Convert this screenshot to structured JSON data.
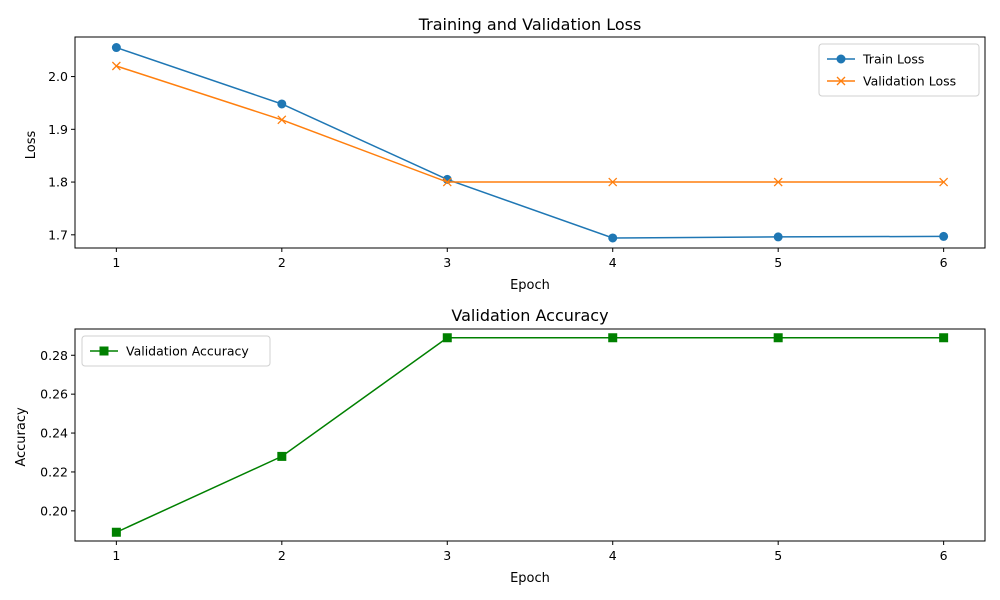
{
  "chart_data": [
    {
      "type": "line",
      "title": "Training and Validation Loss",
      "xlabel": "Epoch",
      "ylabel": "Loss",
      "x": [
        1,
        2,
        3,
        4,
        5,
        6
      ],
      "xlim": [
        0.75,
        6.25
      ],
      "ylim": [
        1.675,
        2.075
      ],
      "xticks": [
        1,
        2,
        3,
        4,
        5,
        6
      ],
      "xtick_labels": [
        "1",
        "2",
        "3",
        "4",
        "5",
        "6"
      ],
      "yticks": [
        1.7,
        1.8,
        1.9,
        2.0
      ],
      "ytick_labels": [
        "1.7",
        "1.8",
        "1.9",
        "2.0"
      ],
      "legend_position": "top-right",
      "grid": false,
      "series": [
        {
          "name": "Train Loss",
          "color": "#1f77b4",
          "marker": "circle",
          "values": [
            2.055,
            1.948,
            1.805,
            1.694,
            1.696,
            1.697
          ]
        },
        {
          "name": "Validation Loss",
          "color": "#ff7f0e",
          "marker": "x",
          "values": [
            2.02,
            1.918,
            1.8,
            1.8,
            1.8,
            1.8
          ]
        }
      ]
    },
    {
      "type": "line",
      "title": "Validation Accuracy",
      "xlabel": "Epoch",
      "ylabel": "Accuracy",
      "x": [
        1,
        2,
        3,
        4,
        5,
        6
      ],
      "xlim": [
        0.75,
        6.25
      ],
      "ylim": [
        0.1845,
        0.2935
      ],
      "xticks": [
        1,
        2,
        3,
        4,
        5,
        6
      ],
      "xtick_labels": [
        "1",
        "2",
        "3",
        "4",
        "5",
        "6"
      ],
      "yticks": [
        0.2,
        0.22,
        0.24,
        0.26,
        0.28
      ],
      "ytick_labels": [
        "0.20",
        "0.22",
        "0.24",
        "0.26",
        "0.28"
      ],
      "legend_position": "top-left",
      "grid": false,
      "series": [
        {
          "name": "Validation Accuracy",
          "color": "#008000",
          "marker": "square",
          "values": [
            0.189,
            0.228,
            0.289,
            0.289,
            0.289,
            0.289
          ]
        }
      ]
    }
  ]
}
